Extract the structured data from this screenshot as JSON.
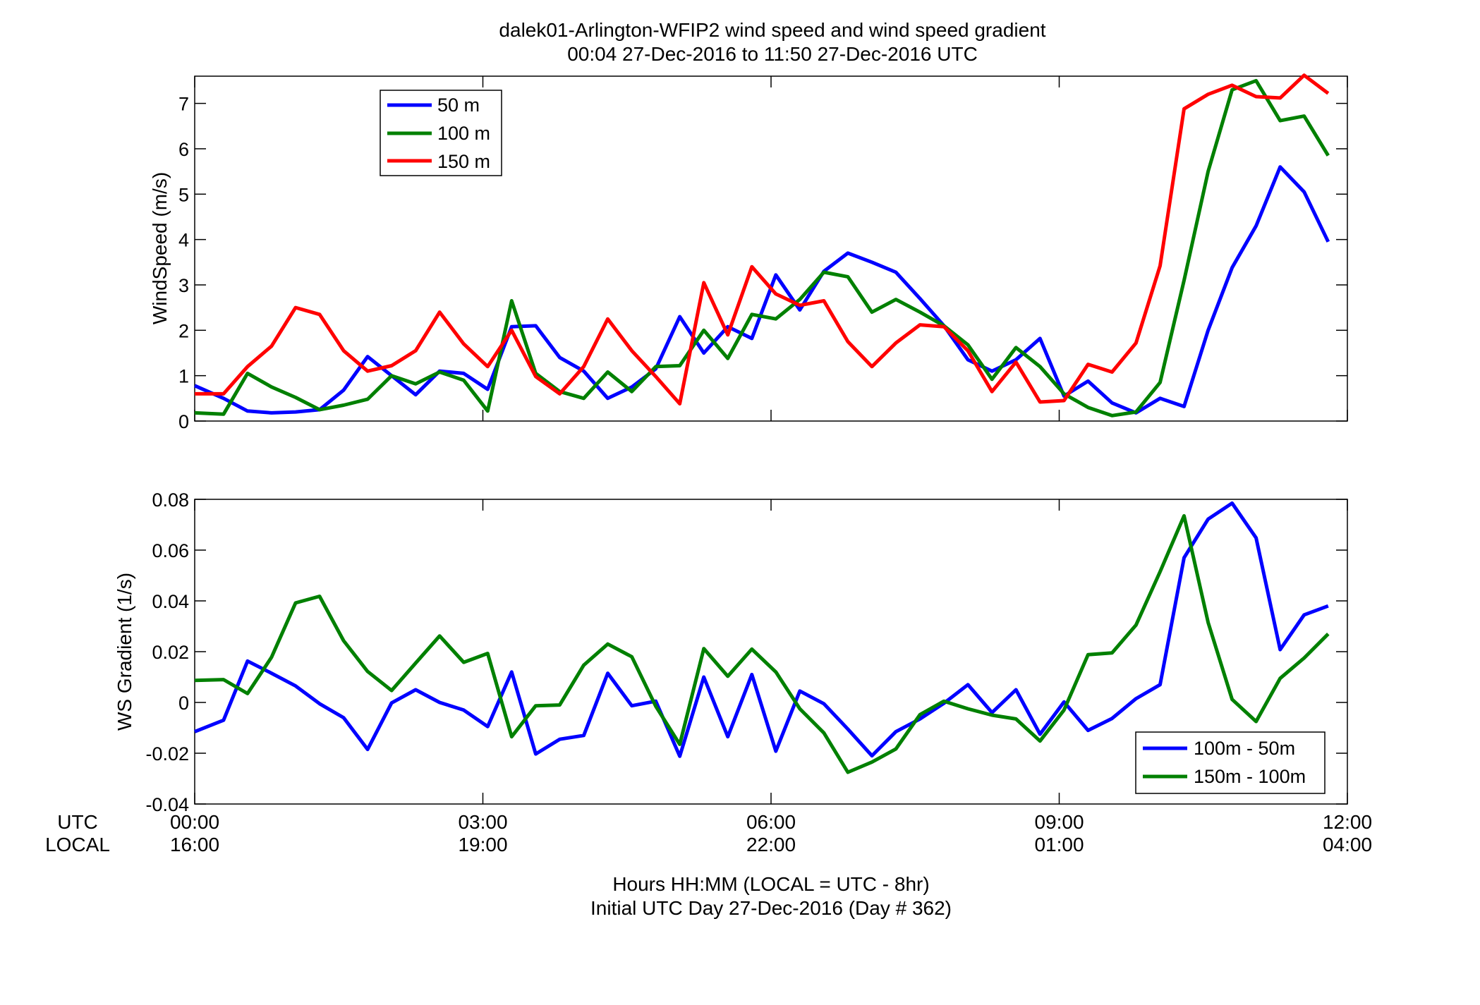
{
  "figure": {
    "title_line1": "dalek01-Arlington-WFIP2  wind speed and wind speed gradient",
    "title_line2": "00:04 27-Dec-2016 to 11:50 27-Dec-2016  UTC",
    "xlabel_line1": "Hours HH:MM  (LOCAL = UTC - 8hr)",
    "xlabel_line2": "Initial UTC Day 27-Dec-2016 (Day # 362)",
    "utc_label": "UTC",
    "local_label": "LOCAL",
    "x_ticks": [
      {
        "hours": 0,
        "utc": "00:00",
        "local": "16:00"
      },
      {
        "hours": 3,
        "utc": "03:00",
        "local": "19:00"
      },
      {
        "hours": 6,
        "utc": "06:00",
        "local": "22:00"
      },
      {
        "hours": 9,
        "utc": "09:00",
        "local": "01:00"
      },
      {
        "hours": 12,
        "utc": "12:00",
        "local": "04:00"
      }
    ]
  },
  "chart_data": [
    {
      "type": "line",
      "ylabel": "WindSpeed (m/s)",
      "xlim": [
        0,
        12
      ],
      "ylim": [
        0,
        7.6
      ],
      "yticks": [
        0,
        1,
        2,
        3,
        4,
        5,
        6,
        7
      ],
      "ytick_labels": [
        "0",
        "1",
        "2",
        "3",
        "4",
        "5",
        "6",
        "7"
      ],
      "legend": "top-left",
      "x_hours": [
        0.0,
        0.3,
        0.55,
        0.8,
        1.05,
        1.3,
        1.55,
        1.8,
        2.05,
        2.3,
        2.55,
        2.8,
        3.05,
        3.3,
        3.55,
        3.8,
        4.05,
        4.3,
        4.55,
        4.8,
        5.05,
        5.3,
        5.55,
        5.8,
        6.05,
        6.3,
        6.55,
        6.8,
        7.05,
        7.3,
        7.55,
        7.8,
        8.05,
        8.3,
        8.55,
        8.8,
        9.05,
        9.3,
        9.55,
        9.8,
        10.05,
        10.3,
        10.55,
        10.8,
        11.05,
        11.3,
        11.55,
        11.8
      ],
      "series": [
        {
          "name": "50 m",
          "color": "#0000ff",
          "values": [
            0.78,
            0.5,
            0.22,
            0.18,
            0.2,
            0.25,
            0.68,
            1.42,
            1.0,
            0.58,
            1.1,
            1.05,
            0.7,
            2.08,
            2.1,
            1.4,
            1.1,
            0.5,
            0.75,
            1.15,
            2.3,
            1.5,
            2.08,
            1.82,
            3.22,
            2.45,
            3.3,
            3.7,
            3.5,
            3.28,
            2.7,
            2.1,
            1.35,
            1.1,
            1.35,
            1.82,
            0.55,
            0.88,
            0.4,
            0.18,
            0.5,
            0.32,
            2.0,
            3.38,
            4.3,
            5.6,
            5.05,
            3.95
          ]
        },
        {
          "name": "100 m",
          "color": "#008000",
          "values": [
            0.18,
            0.15,
            1.05,
            0.75,
            0.52,
            0.25,
            0.35,
            0.48,
            1.0,
            0.82,
            1.08,
            0.9,
            0.22,
            2.65,
            1.05,
            0.65,
            0.5,
            1.08,
            0.65,
            1.2,
            1.22,
            2.0,
            1.38,
            2.35,
            2.25,
            2.68,
            3.28,
            3.18,
            2.4,
            2.68,
            2.4,
            2.1,
            1.68,
            0.92,
            1.62,
            1.2,
            0.6,
            0.3,
            0.12,
            0.2,
            0.85,
            3.1,
            5.5,
            7.3,
            7.5,
            6.62,
            6.72,
            5.85
          ]
        },
        {
          "name": "150 m",
          "color": "#ff0000",
          "values": [
            0.6,
            0.6,
            1.2,
            1.65,
            2.5,
            2.35,
            1.55,
            1.1,
            1.22,
            1.55,
            2.4,
            1.7,
            1.2,
            2.0,
            0.98,
            0.6,
            1.2,
            2.25,
            1.55,
            0.98,
            0.38,
            3.05,
            1.9,
            3.4,
            2.8,
            2.55,
            2.65,
            1.75,
            1.2,
            1.72,
            2.12,
            2.08,
            1.55,
            0.65,
            1.3,
            0.42,
            0.45,
            1.25,
            1.08,
            1.72,
            3.42,
            6.88,
            7.2,
            7.4,
            7.15,
            7.12,
            7.62,
            7.22
          ]
        }
      ]
    },
    {
      "type": "line",
      "ylabel": "WS Gradient (1/s)",
      "xlim": [
        0,
        12
      ],
      "ylim": [
        -0.04,
        0.08
      ],
      "yticks": [
        -0.04,
        -0.02,
        0,
        0.02,
        0.04,
        0.06,
        0.08
      ],
      "ytick_labels": [
        "-0.04",
        "-0.02",
        "0",
        "0.02",
        "0.04",
        "0.06",
        "0.08"
      ],
      "legend": "bottom-right",
      "x_hours": [
        0.0,
        0.3,
        0.55,
        0.8,
        1.05,
        1.3,
        1.55,
        1.8,
        2.05,
        2.3,
        2.55,
        2.8,
        3.05,
        3.3,
        3.55,
        3.8,
        4.05,
        4.3,
        4.55,
        4.8,
        5.05,
        5.3,
        5.55,
        5.8,
        6.05,
        6.3,
        6.55,
        6.8,
        7.05,
        7.3,
        7.55,
        7.8,
        8.05,
        8.3,
        8.55,
        8.8,
        9.05,
        9.3,
        9.55,
        9.8,
        10.05,
        10.3,
        10.55,
        10.8,
        11.05,
        11.3,
        11.55,
        11.8
      ],
      "series": [
        {
          "name": "100m - 50m",
          "color": "#0000ff",
          "values": [
            -0.0115,
            -0.007,
            0.0163,
            0.0115,
            0.0065,
            -0.0005,
            -0.006,
            -0.0185,
            -0.0002,
            0.005,
            0.0,
            -0.003,
            -0.0095,
            0.012,
            -0.0203,
            -0.0145,
            -0.013,
            0.0115,
            -0.0013,
            0.0005,
            -0.0212,
            0.01,
            -0.0135,
            0.011,
            -0.0192,
            0.0045,
            -0.0005,
            -0.0105,
            -0.021,
            -0.0115,
            -0.0065,
            -0.0003,
            0.007,
            -0.004,
            0.005,
            -0.0125,
            0.0002,
            -0.011,
            -0.0063,
            0.0015,
            0.007,
            0.057,
            0.0722,
            0.0785,
            0.0648,
            0.0208,
            0.0345,
            0.038
          ]
        },
        {
          "name": "150m - 100m",
          "color": "#008000",
          "values": [
            0.0087,
            0.009,
            0.0035,
            0.0178,
            0.0392,
            0.0418,
            0.0243,
            0.0122,
            0.0047,
            0.0155,
            0.0262,
            0.0158,
            0.0193,
            -0.0135,
            -0.0013,
            -0.001,
            0.0147,
            0.023,
            0.018,
            -0.0015,
            -0.0165,
            0.0212,
            0.0103,
            0.021,
            0.012,
            -0.0025,
            -0.012,
            -0.0275,
            -0.0235,
            -0.0183,
            -0.0048,
            0.0005,
            -0.0025,
            -0.005,
            -0.0065,
            -0.0152,
            -0.003,
            0.0188,
            0.0195,
            0.0305,
            0.0515,
            0.0735,
            0.0315,
            0.0012,
            -0.0075,
            0.0095,
            0.0175,
            0.027
          ]
        }
      ]
    }
  ]
}
